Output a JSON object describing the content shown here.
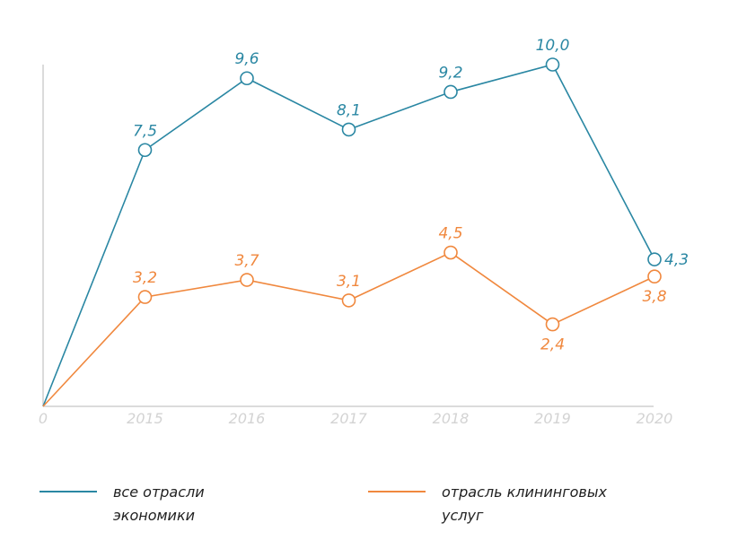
{
  "chart_data": {
    "type": "line",
    "categories": [
      "0",
      "2015",
      "2016",
      "2017",
      "2018",
      "2019",
      "2020"
    ],
    "series": [
      {
        "name": "все отрасли экономики",
        "color": "#2a87a3",
        "values": [
          0,
          7.5,
          9.6,
          8.1,
          9.2,
          10.0,
          4.3
        ],
        "labels": [
          "",
          "7,5",
          "9,6",
          "8,1",
          "9,2",
          "10,0",
          "4,3"
        ]
      },
      {
        "name": "отрасль клининговых услуг",
        "color": "#f0883e",
        "values": [
          0,
          3.2,
          3.7,
          3.1,
          4.5,
          2.4,
          3.8
        ],
        "labels": [
          "",
          "3,2",
          "3,7",
          "3,1",
          "4,5",
          "2,4",
          "3,8"
        ]
      }
    ],
    "ylim": [
      0,
      10
    ],
    "grid": false,
    "legend": "bottom"
  },
  "legend": {
    "items": [
      {
        "line1": "все отрасли",
        "line2": "экономики"
      },
      {
        "line1": "отрасль клининговых",
        "line2": "услуг"
      }
    ]
  }
}
